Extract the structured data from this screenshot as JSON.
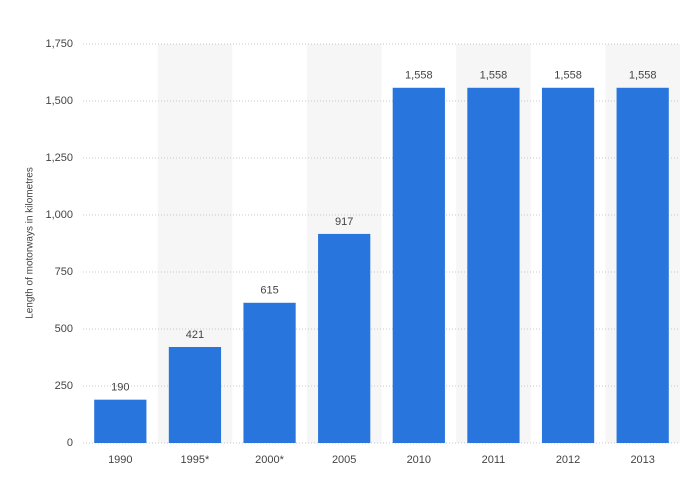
{
  "chart_data": {
    "type": "bar",
    "y_label": "Length of motorways in kilometres",
    "categories": [
      "1990",
      "1995*",
      "2000*",
      "2005",
      "2010",
      "2011",
      "2012",
      "2013"
    ],
    "values": [
      190,
      421,
      615,
      917,
      1558,
      1558,
      1558,
      1558
    ],
    "value_labels": [
      "190",
      "421",
      "615",
      "917",
      "1,558",
      "1,558",
      "1,558",
      "1,558"
    ],
    "color": "#2875dd",
    "ylim": [
      0,
      1750
    ],
    "yticks": [
      0,
      250,
      500,
      750,
      {
        "value": 1000,
        "label": "1,000"
      },
      {
        "value": 1250,
        "label": "1,250"
      },
      {
        "value": 1500,
        "label": "1,500"
      },
      {
        "value": 1750,
        "label": "1,750"
      }
    ],
    "grid": true
  }
}
